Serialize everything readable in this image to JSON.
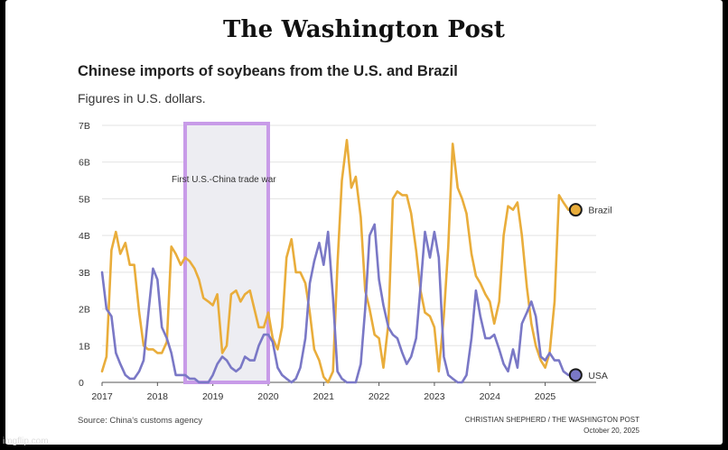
{
  "masthead": "The Washington Post",
  "chart_data": {
    "type": "line",
    "title": "Chinese imports of soybeans from the U.S. and Brazil",
    "subtitle": "Figures in U.S. dollars.",
    "xlabel": "",
    "ylabel": "",
    "ylim": [
      0,
      7
    ],
    "xlim": [
      2017,
      2025.92
    ],
    "y_ticks": [
      0,
      1,
      2,
      3,
      4,
      5,
      6,
      7
    ],
    "y_tick_labels": [
      "0",
      "1B",
      "2B",
      "3B",
      "4B",
      "5B",
      "6B",
      "7B"
    ],
    "x_ticks": [
      2017,
      2018,
      2019,
      2020,
      2021,
      2022,
      2023,
      2024,
      2025
    ],
    "x_tick_labels": [
      "2017",
      "2018",
      "2019",
      "2020",
      "2021",
      "2022",
      "2023",
      "2024",
      "2025"
    ],
    "grid": true,
    "shaded_region": {
      "x0": 2018.5,
      "x1": 2020.0,
      "label": "First U.S.-China trade war",
      "color": "#c89be8"
    },
    "series": [
      {
        "name": "Brazil",
        "color": "#e9ad3b",
        "points": [
          [
            2017.0,
            0.3
          ],
          [
            2017.08,
            0.7
          ],
          [
            2017.17,
            3.6
          ],
          [
            2017.25,
            4.1
          ],
          [
            2017.33,
            3.5
          ],
          [
            2017.42,
            3.8
          ],
          [
            2017.5,
            3.2
          ],
          [
            2017.58,
            3.2
          ],
          [
            2017.67,
            1.9
          ],
          [
            2017.75,
            1.0
          ],
          [
            2017.83,
            0.9
          ],
          [
            2017.92,
            0.9
          ],
          [
            2018.0,
            0.8
          ],
          [
            2018.08,
            0.8
          ],
          [
            2018.17,
            1.1
          ],
          [
            2018.25,
            3.7
          ],
          [
            2018.33,
            3.5
          ],
          [
            2018.42,
            3.2
          ],
          [
            2018.5,
            3.4
          ],
          [
            2018.58,
            3.3
          ],
          [
            2018.67,
            3.1
          ],
          [
            2018.75,
            2.8
          ],
          [
            2018.83,
            2.3
          ],
          [
            2018.92,
            2.2
          ],
          [
            2019.0,
            2.1
          ],
          [
            2019.08,
            2.4
          ],
          [
            2019.17,
            0.8
          ],
          [
            2019.25,
            1.0
          ],
          [
            2019.33,
            2.4
          ],
          [
            2019.42,
            2.5
          ],
          [
            2019.5,
            2.2
          ],
          [
            2019.58,
            2.4
          ],
          [
            2019.67,
            2.5
          ],
          [
            2019.75,
            2.0
          ],
          [
            2019.83,
            1.5
          ],
          [
            2019.92,
            1.5
          ],
          [
            2020.0,
            1.9
          ],
          [
            2020.08,
            1.2
          ],
          [
            2020.17,
            0.9
          ],
          [
            2020.25,
            1.5
          ],
          [
            2020.33,
            3.4
          ],
          [
            2020.42,
            3.9
          ],
          [
            2020.5,
            3.0
          ],
          [
            2020.58,
            3.0
          ],
          [
            2020.67,
            2.7
          ],
          [
            2020.75,
            1.9
          ],
          [
            2020.83,
            0.9
          ],
          [
            2020.92,
            0.6
          ],
          [
            2021.0,
            0.15
          ],
          [
            2021.08,
            0.0
          ],
          [
            2021.17,
            0.3
          ],
          [
            2021.25,
            3.2
          ],
          [
            2021.33,
            5.5
          ],
          [
            2021.42,
            6.6
          ],
          [
            2021.5,
            5.3
          ],
          [
            2021.58,
            5.6
          ],
          [
            2021.67,
            4.5
          ],
          [
            2021.75,
            2.5
          ],
          [
            2021.83,
            2.0
          ],
          [
            2021.92,
            1.3
          ],
          [
            2022.0,
            1.2
          ],
          [
            2022.08,
            0.4
          ],
          [
            2022.17,
            1.6
          ],
          [
            2022.25,
            5.0
          ],
          [
            2022.33,
            5.2
          ],
          [
            2022.42,
            5.1
          ],
          [
            2022.5,
            5.1
          ],
          [
            2022.58,
            4.6
          ],
          [
            2022.67,
            3.6
          ],
          [
            2022.75,
            2.5
          ],
          [
            2022.83,
            1.9
          ],
          [
            2022.92,
            1.8
          ],
          [
            2023.0,
            1.5
          ],
          [
            2023.08,
            0.3
          ],
          [
            2023.17,
            1.8
          ],
          [
            2023.25,
            3.7
          ],
          [
            2023.33,
            6.5
          ],
          [
            2023.42,
            5.3
          ],
          [
            2023.5,
            5.0
          ],
          [
            2023.58,
            4.6
          ],
          [
            2023.67,
            3.5
          ],
          [
            2023.75,
            2.9
          ],
          [
            2023.83,
            2.7
          ],
          [
            2023.92,
            2.4
          ],
          [
            2024.0,
            2.2
          ],
          [
            2024.08,
            1.6
          ],
          [
            2024.17,
            2.2
          ],
          [
            2024.25,
            4.0
          ],
          [
            2024.33,
            4.8
          ],
          [
            2024.42,
            4.7
          ],
          [
            2024.5,
            4.9
          ],
          [
            2024.58,
            4.0
          ],
          [
            2024.67,
            2.6
          ],
          [
            2024.75,
            1.6
          ],
          [
            2024.83,
            1.0
          ],
          [
            2024.92,
            0.6
          ],
          [
            2025.0,
            0.4
          ],
          [
            2025.08,
            0.8
          ],
          [
            2025.17,
            2.2
          ],
          [
            2025.25,
            5.1
          ],
          [
            2025.33,
            4.9
          ],
          [
            2025.42,
            4.7
          ]
        ],
        "end_label": "Brazil"
      },
      {
        "name": "USA",
        "color": "#7a78c6",
        "points": [
          [
            2017.0,
            3.0
          ],
          [
            2017.08,
            2.0
          ],
          [
            2017.17,
            1.8
          ],
          [
            2017.25,
            0.8
          ],
          [
            2017.33,
            0.5
          ],
          [
            2017.42,
            0.2
          ],
          [
            2017.5,
            0.1
          ],
          [
            2017.58,
            0.1
          ],
          [
            2017.67,
            0.3
          ],
          [
            2017.75,
            0.6
          ],
          [
            2017.83,
            1.8
          ],
          [
            2017.92,
            3.1
          ],
          [
            2018.0,
            2.8
          ],
          [
            2018.08,
            1.5
          ],
          [
            2018.17,
            1.2
          ],
          [
            2018.25,
            0.8
          ],
          [
            2018.33,
            0.2
          ],
          [
            2018.42,
            0.2
          ],
          [
            2018.5,
            0.2
          ],
          [
            2018.58,
            0.1
          ],
          [
            2018.67,
            0.1
          ],
          [
            2018.75,
            0.0
          ],
          [
            2018.83,
            0.0
          ],
          [
            2018.92,
            0.0
          ],
          [
            2019.0,
            0.2
          ],
          [
            2019.08,
            0.5
          ],
          [
            2019.17,
            0.7
          ],
          [
            2019.25,
            0.6
          ],
          [
            2019.33,
            0.4
          ],
          [
            2019.42,
            0.3
          ],
          [
            2019.5,
            0.4
          ],
          [
            2019.58,
            0.7
          ],
          [
            2019.67,
            0.6
          ],
          [
            2019.75,
            0.6
          ],
          [
            2019.83,
            1.0
          ],
          [
            2019.92,
            1.3
          ],
          [
            2020.0,
            1.3
          ],
          [
            2020.08,
            1.1
          ],
          [
            2020.17,
            0.4
          ],
          [
            2020.25,
            0.2
          ],
          [
            2020.33,
            0.1
          ],
          [
            2020.42,
            0.0
          ],
          [
            2020.5,
            0.1
          ],
          [
            2020.58,
            0.4
          ],
          [
            2020.67,
            1.2
          ],
          [
            2020.75,
            2.7
          ],
          [
            2020.83,
            3.3
          ],
          [
            2020.92,
            3.8
          ],
          [
            2021.0,
            3.2
          ],
          [
            2021.08,
            4.1
          ],
          [
            2021.17,
            2.3
          ],
          [
            2021.25,
            0.3
          ],
          [
            2021.33,
            0.1
          ],
          [
            2021.42,
            0.0
          ],
          [
            2021.5,
            0.0
          ],
          [
            2021.58,
            0.0
          ],
          [
            2021.67,
            0.5
          ],
          [
            2021.75,
            2.0
          ],
          [
            2021.83,
            4.0
          ],
          [
            2021.92,
            4.3
          ],
          [
            2022.0,
            2.8
          ],
          [
            2022.08,
            2.1
          ],
          [
            2022.17,
            1.5
          ],
          [
            2022.25,
            1.3
          ],
          [
            2022.33,
            1.2
          ],
          [
            2022.42,
            0.8
          ],
          [
            2022.5,
            0.5
          ],
          [
            2022.58,
            0.7
          ],
          [
            2022.67,
            1.2
          ],
          [
            2022.75,
            2.6
          ],
          [
            2022.83,
            4.1
          ],
          [
            2022.92,
            3.4
          ],
          [
            2023.0,
            4.1
          ],
          [
            2023.08,
            3.4
          ],
          [
            2023.17,
            0.7
          ],
          [
            2023.25,
            0.2
          ],
          [
            2023.33,
            0.1
          ],
          [
            2023.42,
            0.0
          ],
          [
            2023.5,
            0.0
          ],
          [
            2023.58,
            0.2
          ],
          [
            2023.67,
            1.2
          ],
          [
            2023.75,
            2.5
          ],
          [
            2023.83,
            1.8
          ],
          [
            2023.92,
            1.2
          ],
          [
            2024.0,
            1.2
          ],
          [
            2024.08,
            1.3
          ],
          [
            2024.17,
            0.9
          ],
          [
            2024.25,
            0.5
          ],
          [
            2024.33,
            0.3
          ],
          [
            2024.42,
            0.9
          ],
          [
            2024.5,
            0.4
          ],
          [
            2024.58,
            1.6
          ],
          [
            2024.67,
            1.9
          ],
          [
            2024.75,
            2.2
          ],
          [
            2024.83,
            1.8
          ],
          [
            2024.92,
            0.7
          ],
          [
            2025.0,
            0.6
          ],
          [
            2025.08,
            0.8
          ],
          [
            2025.17,
            0.6
          ],
          [
            2025.25,
            0.6
          ],
          [
            2025.33,
            0.3
          ],
          [
            2025.42,
            0.2
          ]
        ],
        "end_label": "USA"
      }
    ],
    "source": "Source: China's customs agency",
    "credit": "CHRISTIAN SHEPHERD / THE WASHINGTON POST",
    "date": "October 20, 2025"
  },
  "watermark": "imgflip.com"
}
